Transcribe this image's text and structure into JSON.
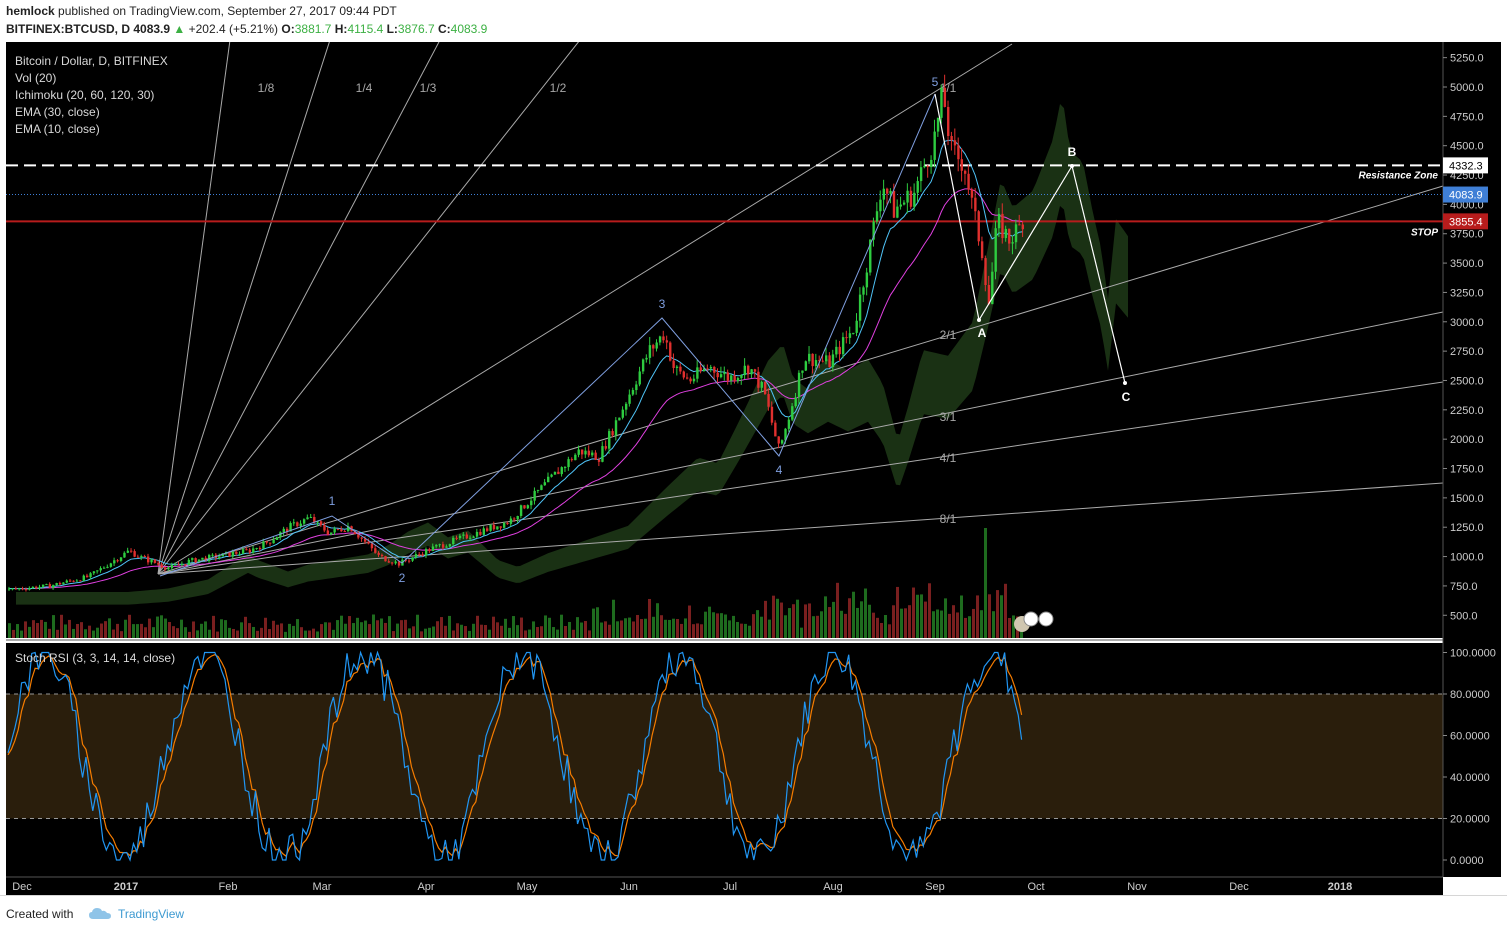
{
  "header": {
    "author": "hemlock",
    "published_text": "published on TradingView.com, September 27, 2017 09:44 PDT",
    "symbol": "BITFINEX:BTCUSD, D",
    "last": "4083.9",
    "change": "+202.4 (+5.21%)",
    "o_label": "O:",
    "o": "3881.7",
    "h_label": "H:",
    "h": "4115.4",
    "l_label": "L:",
    "l": "3876.7",
    "c_label": "C:",
    "c": "4083.9"
  },
  "legend": {
    "title": "Bitcoin / Dollar, D, BITFINEX",
    "vol": "Vol (20)",
    "ichimoku": "Ichimoku (20, 60, 120, 30)",
    "ema30": "EMA (30, close)",
    "ema10": "EMA (10, close)"
  },
  "stoch_label": "Stoch RSI (3, 3, 14, 14, close)",
  "footer": {
    "created": "Created with",
    "brand": "TradingView"
  },
  "colors": {
    "background": "#000000",
    "bull": "#2ecc40",
    "bear": "#e0302e",
    "ema10": "#4fc3f7",
    "ema30": "#e040e0",
    "cloud": "#1e3a17",
    "stop": "#b71c1c",
    "price_line": "#3f7fd6",
    "wave": "#7f9fe0",
    "stoch_k": "#2196f3",
    "stoch_d": "#f57c00",
    "band": "#2a1e0c"
  },
  "chart_data": {
    "type": "candlestick",
    "title": "Bitcoin / Dollar, D, BITFINEX",
    "x_tick_labels": [
      "Dec",
      "2017",
      "Feb",
      "Mar",
      "Apr",
      "May",
      "Jun",
      "Jul",
      "Aug",
      "Sep",
      "Oct",
      "Nov",
      "Dec",
      "2018"
    ],
    "y_tick_labels": [
      "5250.0",
      "5000.0",
      "4750.0",
      "4500.0",
      "4250.0",
      "4000.0",
      "3750.0",
      "3500.0",
      "3250.0",
      "3000.0",
      "2750.0",
      "2500.0",
      "2250.0",
      "2000.0",
      "1750.0",
      "1500.0",
      "1250.0",
      "1000.0",
      "750.0",
      "500.0"
    ],
    "price_tags": {
      "resistance": {
        "value": "4332.3",
        "label": "Resistance Zone"
      },
      "last": {
        "value": "4083.9"
      },
      "stop": {
        "value": "3855.4",
        "label": "STOP"
      }
    },
    "fan_labels": [
      "1/8",
      "1/4",
      "1/3",
      "1/2",
      "1/1",
      "2/1",
      "3/1",
      "4/1",
      "8/1"
    ],
    "wave_labels": [
      "1",
      "2",
      "3",
      "4",
      "5"
    ],
    "abc_labels": [
      "A",
      "B",
      "C"
    ],
    "approx_closes": [
      {
        "date": "Dec",
        "close": 750
      },
      {
        "date": "2017",
        "close": 1000
      },
      {
        "date": "Feb",
        "close": 960
      },
      {
        "date": "Mar",
        "close": 1200
      },
      {
        "date": "Apr",
        "close": 1080
      },
      {
        "date": "May",
        "close": 1400
      },
      {
        "date": "Jun",
        "close": 2300
      },
      {
        "date": "Jul",
        "close": 2500
      },
      {
        "date": "Aug",
        "close": 2850
      },
      {
        "date": "Sep",
        "close": 4700
      },
      {
        "date": "Oct",
        "close": 4083.9
      }
    ],
    "wave_points": [
      {
        "label": "1",
        "price": 1330
      },
      {
        "label": "2",
        "price": 900
      },
      {
        "label": "3",
        "price": 3030
      },
      {
        "label": "4",
        "price": 1850
      },
      {
        "label": "5",
        "price": 4980
      }
    ],
    "abc_points": [
      {
        "label": "A",
        "price": 3000
      },
      {
        "label": "B",
        "price": 4332.3
      },
      {
        "label": "C",
        "price": 2480
      }
    ],
    "stoch_rsi": {
      "y_tick_labels": [
        "100.0000",
        "80.0000",
        "60.0000",
        "40.0000",
        "20.0000",
        "0.0000"
      ],
      "bands": [
        20,
        80
      ]
    }
  }
}
